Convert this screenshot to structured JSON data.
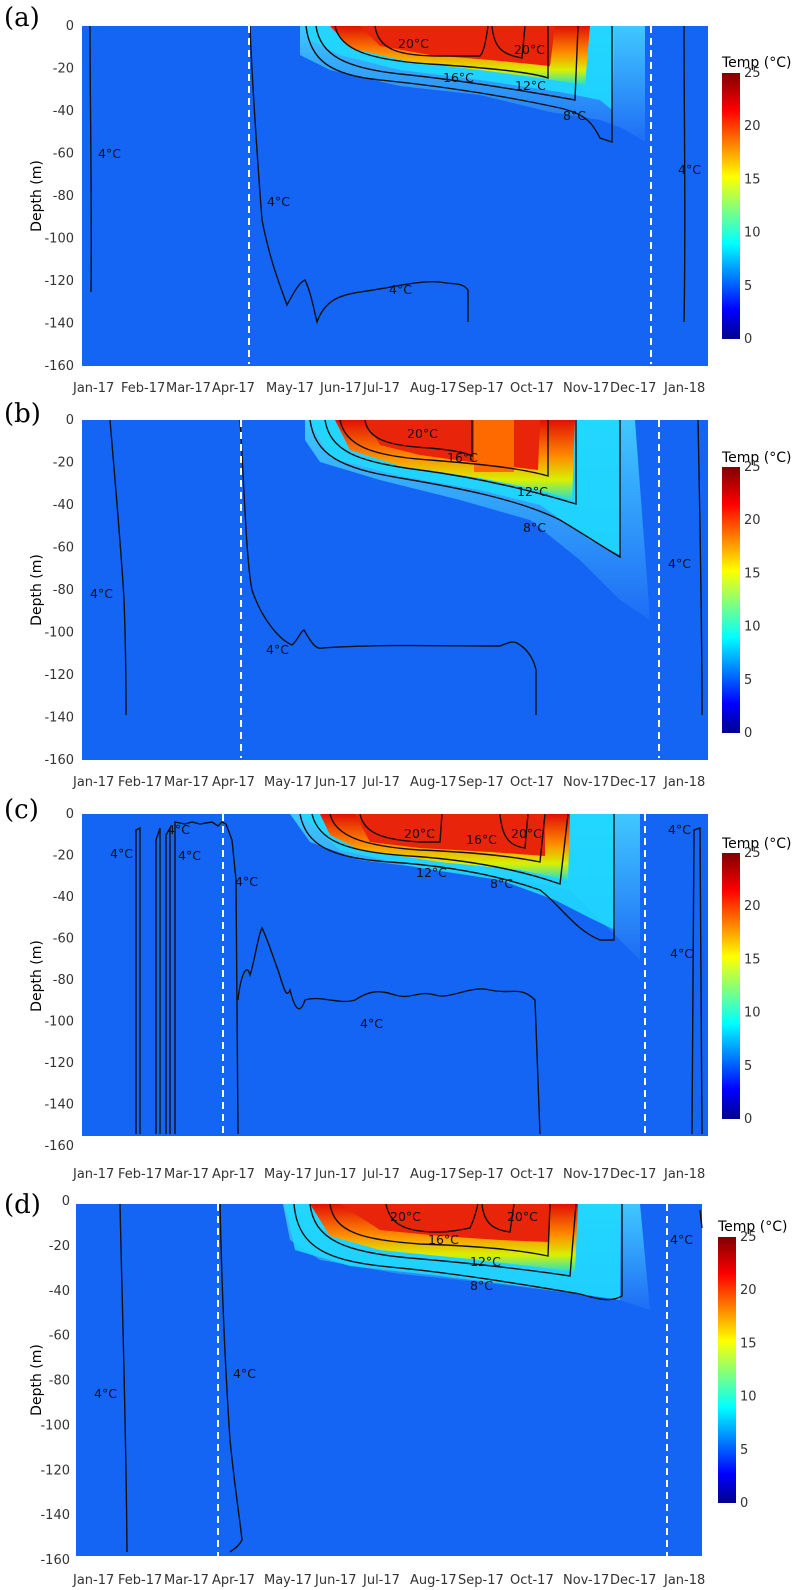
{
  "chart_data": [
    {
      "type": "heatmap",
      "panel_label": "(a)",
      "ylabel": "Depth (m)",
      "colorbar_title": "Temp (°C)",
      "colorbar_ticks": [
        "0",
        "5",
        "10",
        "15",
        "20",
        "25"
      ],
      "colorbar_range": [
        0,
        25
      ],
      "x_tick_labels": [
        "Jan-17",
        "Feb-17",
        "Mar-17",
        "Apr-17",
        "May-17",
        "Jun-17",
        "Jul-17",
        "Aug-17",
        "Sep-17",
        "Oct-17",
        "Nov-17",
        "Dec-17",
        "Jan-18"
      ],
      "y_tick_labels": [
        "0",
        "-20",
        "-40",
        "-60",
        "-80",
        "-100",
        "-120",
        "-140",
        "-160"
      ],
      "ylim": [
        -160,
        0
      ],
      "stratification_markers": [
        "2017-04-23",
        "2017-12-24"
      ],
      "contour_labels": [
        "20°C",
        "20°C",
        "16°C",
        "12°C",
        "8°C",
        "4°C",
        "4°C",
        "4°C",
        "4°C"
      ],
      "mixed_layer_depth_m": {
        "Jun-17": -8,
        "Jul-17": -12,
        "Aug-17": -16,
        "Sep-17": -20,
        "Oct-17": -24,
        "Nov-17": -32,
        "Dec-17": -55
      },
      "surface_max_temp_c": 23
    },
    {
      "type": "heatmap",
      "panel_label": "(b)",
      "ylabel": "Depth (m)",
      "colorbar_title": "Temp (°C)",
      "colorbar_ticks": [
        "0",
        "5",
        "10",
        "15",
        "20",
        "25"
      ],
      "colorbar_range": [
        0,
        25
      ],
      "x_tick_labels": [
        "Jan-17",
        "Feb-17",
        "Mar-17",
        "Apr-17",
        "May-17",
        "Jun-17",
        "Jul-17",
        "Aug-17",
        "Sep-17",
        "Oct-17",
        "Nov-17",
        "Dec-17",
        "Jan-18"
      ],
      "y_tick_labels": [
        "0",
        "-20",
        "-40",
        "-60",
        "-80",
        "-100",
        "-120",
        "-140",
        "-160"
      ],
      "ylim": [
        -160,
        0
      ],
      "stratification_markers": [
        "2017-04-20",
        "2017-12-28"
      ],
      "contour_labels": [
        "20°C",
        "16°C",
        "12°C",
        "8°C",
        "4°C",
        "4°C",
        "4°C"
      ],
      "mixed_layer_depth_m": {
        "Jun-17": -10,
        "Jul-17": -15,
        "Aug-17": -18,
        "Sep-17": -24,
        "Oct-17": -30,
        "Nov-17": -40,
        "Dec-17": -65
      },
      "surface_max_temp_c": 23
    },
    {
      "type": "heatmap",
      "panel_label": "(c)",
      "ylabel": "Depth (m)",
      "colorbar_title": "Temp (°C)",
      "colorbar_ticks": [
        "0",
        "5",
        "10",
        "15",
        "20",
        "25"
      ],
      "colorbar_range": [
        0,
        25
      ],
      "x_tick_labels": [
        "Jan-17",
        "Feb-17",
        "Mar-17",
        "Apr-17",
        "May-17",
        "Jun-17",
        "Jul-17",
        "Aug-17",
        "Sep-17",
        "Oct-17",
        "Nov-17",
        "Dec-17",
        "Jan-18"
      ],
      "y_tick_labels": [
        "0",
        "-20",
        "-40",
        "-60",
        "-80",
        "-100",
        "-120",
        "-140",
        "-160"
      ],
      "ylim": [
        -160,
        0
      ],
      "stratification_markers": [
        "2017-04-08",
        "2017-12-25"
      ],
      "contour_labels": [
        "20°C",
        "16°C",
        "20°C",
        "12°C",
        "8°C",
        "4°C",
        "4°C",
        "4°C",
        "4°C",
        "4°C",
        "4°C",
        "4°C"
      ],
      "mixed_layer_depth_m": {
        "Jun-17": -8,
        "Jul-17": -15,
        "Aug-17": -18,
        "Sep-17": -22,
        "Oct-17": -25,
        "Nov-17": -35,
        "Dec-17": -55
      },
      "surface_max_temp_c": 23
    },
    {
      "type": "heatmap",
      "panel_label": "(d)",
      "ylabel": "Depth (m)",
      "colorbar_title": "Temp (°C)",
      "colorbar_ticks": [
        "0",
        "5",
        "10",
        "15",
        "20",
        "25"
      ],
      "colorbar_range": [
        0,
        25
      ],
      "x_tick_labels": [
        "Jan-17",
        "Feb-17",
        "Mar-17",
        "Apr-17",
        "May-17",
        "Jun-17",
        "Jul-17",
        "Aug-17",
        "Sep-17",
        "Oct-17",
        "Nov-17",
        "Dec-17",
        "Jan-18"
      ],
      "y_tick_labels": [
        "0",
        "-20",
        "-40",
        "-60",
        "-80",
        "-100",
        "-120",
        "-140",
        "-160"
      ],
      "ylim": [
        -160,
        0
      ],
      "stratification_markers": [
        "2017-04-06",
        "2018-01-05"
      ],
      "contour_labels": [
        "20°C",
        "20°C",
        "16°C",
        "12°C",
        "8°C",
        "4°C",
        "4°C",
        "4°C"
      ],
      "mixed_layer_depth_m": {
        "Jun-17": -8,
        "Jul-17": -12,
        "Aug-17": -15,
        "Sep-17": -20,
        "Oct-17": -24,
        "Nov-17": -32,
        "Dec-17": -45
      },
      "surface_max_temp_c": 23
    }
  ]
}
